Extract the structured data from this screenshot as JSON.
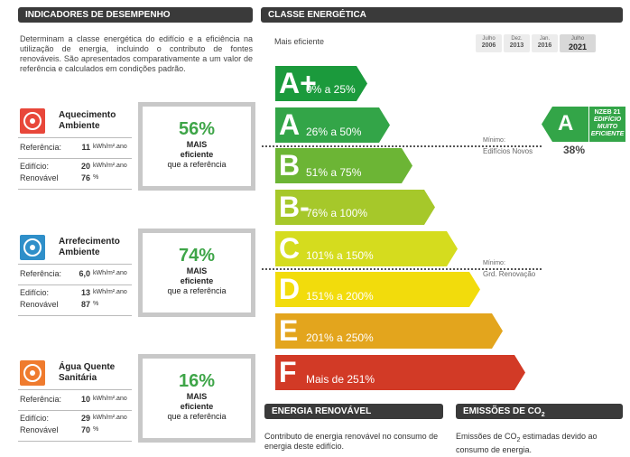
{
  "left": {
    "title": "INDICADORES DE DESEMPENHO",
    "intro": "Determinam a classe energética do edifício e a eficiência na utilização de energia, incluindo o contributo de fontes renováveis. São apresentados comparativamente a um valor de referência e calculados em condições padrão.",
    "indicators": [
      {
        "name": "Aquecimento Ambiente",
        "color": "#e8473a",
        "ref_label": "Referência:",
        "ref_value": "11",
        "ref_unit": "kWh/m².ano",
        "building_label": "Edifício:",
        "building_value": "20",
        "building_unit": "kWh/m².ano",
        "renew_label": "Renovável",
        "renew_value": "76",
        "renew_unit": "%",
        "pct": "56%",
        "more": "MAIS",
        "efficient": "eficiente",
        "ref_text": "que a referência"
      },
      {
        "name": "Arrefecimento Ambiente",
        "color": "#2f8fc9",
        "ref_label": "Referência:",
        "ref_value": "6,0",
        "ref_unit": "kWh/m².ano",
        "building_label": "Edifício:",
        "building_value": "13",
        "building_unit": "kWh/m².ano",
        "renew_label": "Renovável",
        "renew_value": "87",
        "renew_unit": "%",
        "pct": "74%",
        "more": "MAIS",
        "efficient": "eficiente",
        "ref_text": "que a referência"
      },
      {
        "name": "Água Quente Sanitária",
        "color": "#ef7b2e",
        "ref_label": "Referência:",
        "ref_value": "10",
        "ref_unit": "kWh/m².ano",
        "building_label": "Edifício:",
        "building_value": "29",
        "building_unit": "kWh/m².ano",
        "renew_label": "Renovável",
        "renew_value": "70",
        "renew_unit": "%",
        "pct": "16%",
        "more": "MAIS",
        "efficient": "eficiente",
        "ref_text": "que a referência"
      }
    ]
  },
  "right": {
    "title": "CLASSE ENERGÉTICA",
    "most_efficient": "Mais eficiente",
    "periods": [
      {
        "month": "Julho",
        "year": "2006"
      },
      {
        "month": "Dez.",
        "year": "2013"
      },
      {
        "month": "Jan.",
        "year": "2016"
      },
      {
        "month": "Julho",
        "year": "2021"
      }
    ],
    "classes": [
      {
        "letter": "A+",
        "range": "0% a 25%",
        "color": "#1b9a3c"
      },
      {
        "letter": "A",
        "range": "26% a 50%",
        "color": "#33a548"
      },
      {
        "letter": "B",
        "range": "51% a 75%",
        "color": "#6cb535"
      },
      {
        "letter": "B-",
        "range": "76% a 100%",
        "color": "#a6c82a"
      },
      {
        "letter": "C",
        "range": "101% a 150%",
        "color": "#d5dc1e"
      },
      {
        "letter": "D",
        "range": "151% a 200%",
        "color": "#f2dc0c"
      },
      {
        "letter": "E",
        "range": "201% a 250%",
        "color": "#e3a51d"
      },
      {
        "letter": "F",
        "range": "Mais de 251%",
        "color": "#d23a26"
      }
    ],
    "markers": [
      {
        "label": "Mínimo:",
        "sub": "Edifícios Novos"
      },
      {
        "label": "Mínimo:",
        "sub": "Grd. Renovação"
      }
    ],
    "result": {
      "letter": "A",
      "badge_top": "NZEB 21",
      "badge_lines": [
        "EDIFÍCIO",
        "MUITO",
        "EFICIENTE"
      ],
      "pct": "38%"
    }
  },
  "renewable": {
    "title": "ENERGIA RENOVÁVEL",
    "text": "Contributo de energia renovável no consumo de energia deste edifício."
  },
  "emissions": {
    "title": "EMISSÕES DE CO",
    "title_sub": "2",
    "text_before": "Emissões de CO",
    "text_sub": "2",
    "text_after": " estimadas devido ao consumo de energia."
  }
}
